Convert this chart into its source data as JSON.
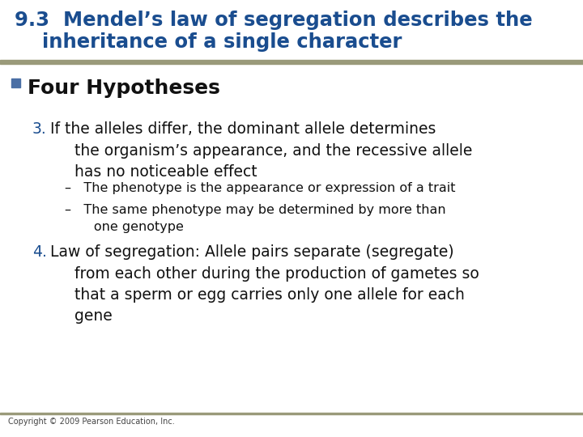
{
  "title_line1": "9.3  Mendel’s law of segregation describes the",
  "title_line2": "    inheritance of a single character",
  "title_color": "#1a4d8f",
  "title_fontsize": 17.5,
  "bg_color": "#FFFFFF",
  "separator_color": "#9A9A7A",
  "bullet_square_color": "#4a6fa5",
  "bullet_text": "Four Hypotheses",
  "bullet_fontsize": 18,
  "item3_number": "3.",
  "item3_color": "#1a4d8f",
  "item3_fontsize": 13.5,
  "item3_text": "If the alleles differ, the dominant allele determines\n     the organism’s appearance, and the recessive allele\n     has no noticeable effect",
  "sub1_text": "–   The phenotype is the appearance or expression of a trait",
  "sub2_text": "–   The same phenotype may be determined by more than\n       one genotype",
  "sub_fontsize": 11.5,
  "sub_color": "#111111",
  "item4_number": "4.",
  "item4_color": "#1a4d8f",
  "item4_fontsize": 13.5,
  "item4_text": "Law of segregation: Allele pairs separate (segregate)\n     from each other during the production of gametes so\n     that a sperm or egg carries only one allele for each\n     gene",
  "footer_text": "Copyright © 2009 Pearson Education, Inc.",
  "footer_fontsize": 7,
  "footer_color": "#444444"
}
